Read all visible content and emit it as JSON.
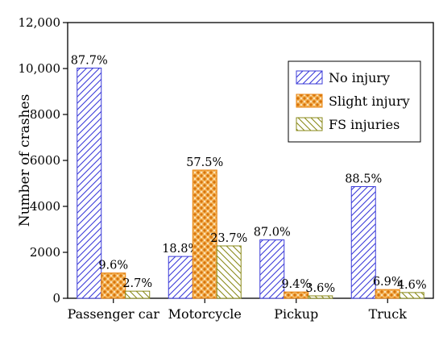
{
  "chart_data": {
    "type": "bar",
    "title": "",
    "xlabel": "",
    "ylabel": "Number of crashes",
    "ylim": [
      0,
      12000
    ],
    "yticks": [
      0,
      2000,
      4000,
      6000,
      8000,
      10000,
      12000
    ],
    "ytick_labels": [
      "0",
      "2000",
      "4000",
      "6000",
      "8000",
      "10,000",
      "12,000"
    ],
    "categories": [
      "Passenger car",
      "Motorcycle",
      "Pickup",
      "Truck"
    ],
    "series": [
      {
        "name": "No injury",
        "color": "#3b3bd9",
        "pattern": "diagonal-hatch",
        "values": [
          10020,
          1820,
          2540,
          4860
        ],
        "labels": [
          "87.7%",
          "18.8%",
          "87.0%",
          "88.5%"
        ]
      },
      {
        "name": "Slight injury",
        "color": "#e8820c",
        "pattern": "dots",
        "values": [
          1100,
          5580,
          275,
          380
        ],
        "labels": [
          "9.6%",
          "57.5%",
          "9.4%",
          "6.9%"
        ]
      },
      {
        "name": "FS injuries",
        "color": "#8a8a1a",
        "pattern": "reverse-diagonal-hatch",
        "values": [
          310,
          2280,
          105,
          250
        ],
        "labels": [
          "2.7%",
          "23.7%",
          "3.6%",
          "4.6%"
        ]
      }
    ],
    "grid": false,
    "legend_position": "top-right"
  }
}
